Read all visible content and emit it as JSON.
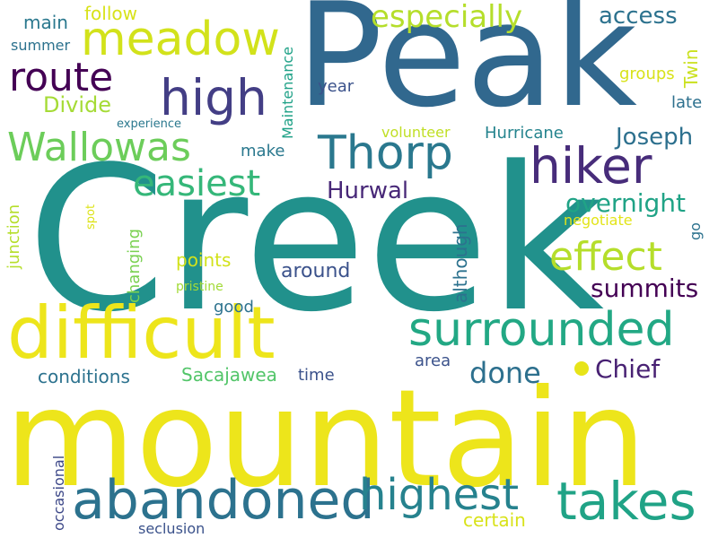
{
  "words": {
    "creek": {
      "text": "Creek",
      "color": "#21918c"
    },
    "mountain": {
      "text": "mountain",
      "color": "#ede51b"
    },
    "peak": {
      "text": "Peak",
      "color": "#31688e"
    },
    "difficult": {
      "text": "difficult",
      "color": "#ede51b"
    },
    "meadow": {
      "text": "meadow",
      "color": "#d2e21b"
    },
    "abandoned": {
      "text": "abandoned",
      "color": "#2c728e"
    },
    "surrounded": {
      "text": "surrounded",
      "color": "#22a884"
    },
    "highest": {
      "text": "highest",
      "color": "#26828e"
    },
    "takes": {
      "text": "takes",
      "color": "#20a386"
    },
    "hiker": {
      "text": "hiker",
      "color": "#472c7a"
    },
    "high": {
      "text": "high",
      "color": "#433e85"
    },
    "thorp": {
      "text": "Thorp",
      "color": "#2a788e"
    },
    "wallowas": {
      "text": "Wallowas",
      "color": "#6ccd5a"
    },
    "route": {
      "text": "route",
      "color": "#440154"
    },
    "easiest": {
      "text": "easiest",
      "color": "#35b779"
    },
    "effect": {
      "text": "effect",
      "color": "#b5de2b"
    },
    "especially": {
      "text": "especially",
      "color": "#b5de2b"
    },
    "done": {
      "text": "done",
      "color": "#2d708e"
    },
    "chief": {
      "text": "Chief",
      "color": "#482173"
    },
    "summits": {
      "text": "summits",
      "color": "#440154"
    },
    "overnight": {
      "text": "overnight",
      "color": "#20a386"
    },
    "hurwal": {
      "text": "Hurwal",
      "color": "#482878"
    },
    "joseph": {
      "text": "Joseph",
      "color": "#2d708e"
    },
    "access": {
      "text": "access",
      "color": "#2c728e"
    },
    "divide": {
      "text": "Divide",
      "color": "#a5db36"
    },
    "main": {
      "text": "main",
      "color": "#2a788e"
    },
    "follow": {
      "text": "follow",
      "color": "#d8e219"
    },
    "summer": {
      "text": "summer",
      "color": "#2c728e"
    },
    "year": {
      "text": "year",
      "color": "#3b528b"
    },
    "maintenance": {
      "text": "Maintenance",
      "color": "#1fa187"
    },
    "groups": {
      "text": "groups",
      "color": "#d8e219"
    },
    "twin": {
      "text": "Twin",
      "color": "#cae11f"
    },
    "late": {
      "text": "late",
      "color": "#2d708e"
    },
    "experience": {
      "text": "experience",
      "color": "#2a788e"
    },
    "volunteer": {
      "text": "volunteer",
      "color": "#c0df25"
    },
    "hurricane": {
      "text": "Hurricane",
      "color": "#25848e"
    },
    "make": {
      "text": "make",
      "color": "#2a788e"
    },
    "junction": {
      "text": "junction",
      "color": "#b5de2b"
    },
    "spot": {
      "text": "spot",
      "color": "#dde318"
    },
    "changing": {
      "text": "changing",
      "color": "#7ad151"
    },
    "points": {
      "text": "points",
      "color": "#d2e21b"
    },
    "around": {
      "text": "around",
      "color": "#3b528b"
    },
    "although": {
      "text": "although",
      "color": "#2c728e"
    },
    "negotiate": {
      "text": "negotiate",
      "color": "#e2e418"
    },
    "go": {
      "text": "go",
      "color": "#2c728e"
    },
    "pristine": {
      "text": "pristine",
      "color": "#a2da37"
    },
    "good": {
      "text": "good",
      "color": "#2c728e"
    },
    "conditions": {
      "text": "conditions",
      "color": "#2c728e"
    },
    "sacajawea": {
      "text": "Sacajawea",
      "color": "#52c569"
    },
    "time": {
      "text": "time",
      "color": "#3b528b"
    },
    "area": {
      "text": "area",
      "color": "#3b528b"
    },
    "occasional": {
      "text": "occasional",
      "color": "#3e4989"
    },
    "certain": {
      "text": "certain",
      "color": "#d8e219"
    },
    "seclusion": {
      "text": "seclusion",
      "color": "#3b528b"
    }
  },
  "dot_color": "#e7e419"
}
